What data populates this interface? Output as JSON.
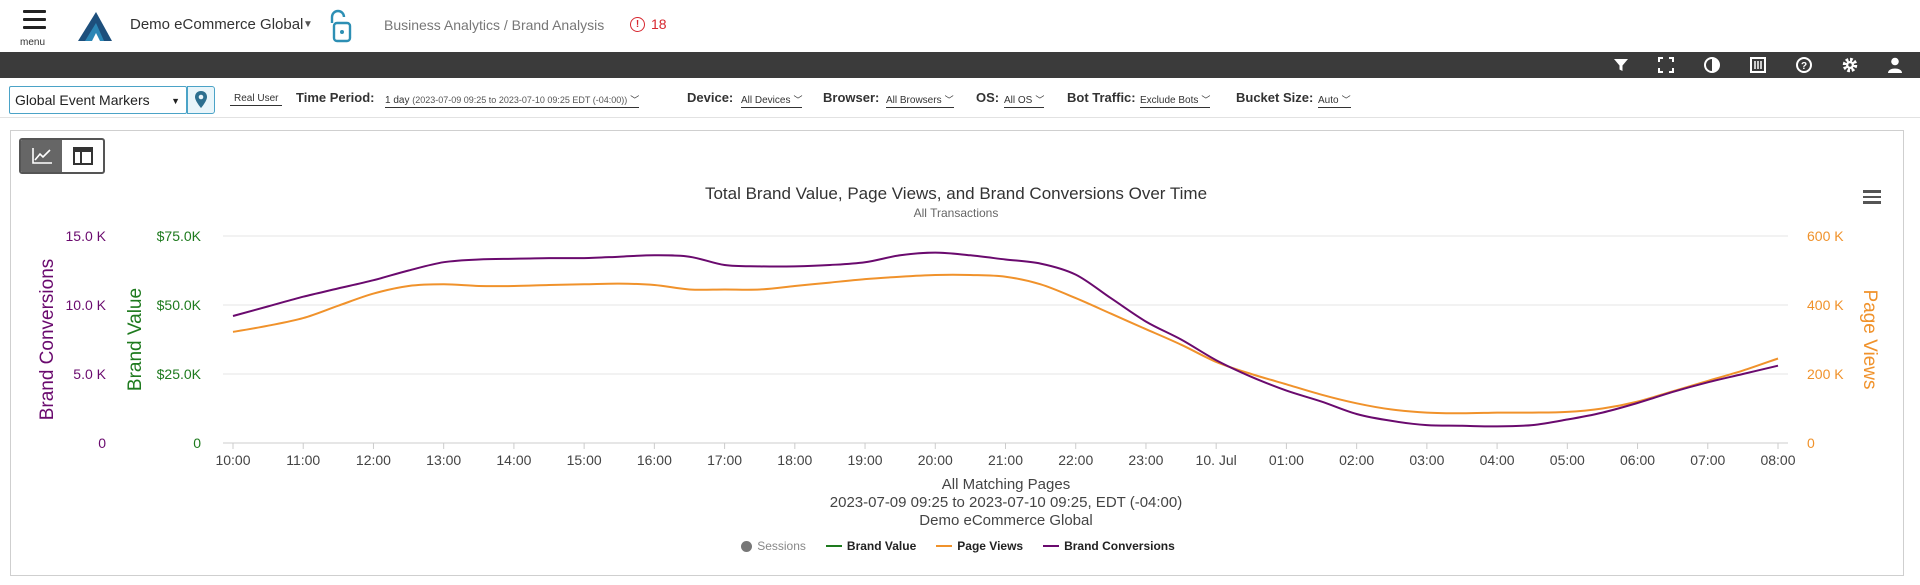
{
  "header": {
    "menu_label": "menu",
    "site_name": "Demo eCommerce Global",
    "breadcrumb": "Business Analytics / Brand Analysis",
    "alert_count": "18"
  },
  "toolbar": {
    "icons": [
      "filter-icon",
      "fullscreen-icon",
      "contrast-icon",
      "notes-icon",
      "help-icon",
      "settings-icon",
      "user-icon"
    ]
  },
  "filters": {
    "marker_select": "Global Event Markers",
    "real_user": "Real User",
    "time_period_label": "Time Period:",
    "time_period_value": "1 day",
    "time_period_range": "(2023-07-09 09:25 to 2023-07-10 09:25 EDT (-04:00))",
    "device_label": "Device:",
    "device_value": "All Devices",
    "browser_label": "Browser:",
    "browser_value": "All Browsers",
    "os_label": "OS:",
    "os_value": "All OS",
    "bot_label": "Bot Traffic:",
    "bot_value": "Exclude Bots",
    "bucket_label": "Bucket Size:",
    "bucket_value": "Auto"
  },
  "chart_data": {
    "type": "line",
    "title": "Total Brand Value, Page Views, and Brand Conversions Over Time",
    "subtitle": "All Transactions",
    "x_ticks": [
      "10:00",
      "11:00",
      "12:00",
      "13:00",
      "14:00",
      "15:00",
      "16:00",
      "17:00",
      "18:00",
      "19:00",
      "20:00",
      "21:00",
      "22:00",
      "23:00",
      "10. Jul",
      "01:00",
      "02:00",
      "03:00",
      "04:00",
      "05:00",
      "06:00",
      "07:00",
      "08:00"
    ],
    "x_hours": [
      0,
      0.5,
      1,
      1.5,
      2,
      2.5,
      3,
      3.5,
      4,
      4.5,
      5,
      5.5,
      6,
      6.5,
      7,
      7.5,
      8,
      8.5,
      9,
      9.5,
      10,
      10.5,
      11,
      11.5,
      12,
      12.5,
      13,
      13.5,
      14,
      14.5,
      15,
      15.5,
      16,
      16.5,
      17,
      17.5,
      18,
      18.5,
      19,
      19.5,
      20,
      20.5,
      21,
      21.5,
      22
    ],
    "axes": {
      "brand_conversions": {
        "label": "Brand Conversions",
        "ticks": [
          "0",
          "5.0 K",
          "10.0 K",
          "15.0 K"
        ],
        "range": [
          0,
          15000
        ],
        "color": "#6a0a6e"
      },
      "brand_value": {
        "label": "Brand Value",
        "ticks": [
          "0",
          "$25.0K",
          "$50.0K",
          "$75.0K"
        ],
        "range": [
          0,
          75000
        ],
        "color": "#1e7a1e"
      },
      "page_views": {
        "label": "Page Views",
        "ticks": [
          "0",
          "200 K",
          "400 K",
          "600 K"
        ],
        "range": [
          0,
          600000
        ],
        "color": "#f0922b"
      }
    },
    "series": [
      {
        "name": "Sessions",
        "color": "#777777",
        "visible": false,
        "values": []
      },
      {
        "name": "Brand Value",
        "color": "#1e7a1e",
        "visible": true,
        "values": []
      },
      {
        "name": "Page Views",
        "color": "#f0922b",
        "axis": "page_views",
        "values": [
          322000,
          340000,
          362000,
          398000,
          433000,
          455000,
          460000,
          455000,
          455000,
          458000,
          460000,
          462000,
          458000,
          445000,
          445000,
          445000,
          455000,
          465000,
          475000,
          482000,
          487000,
          487000,
          482000,
          460000,
          420000,
          375000,
          330000,
          285000,
          235000,
          200000,
          170000,
          140000,
          115000,
          97000,
          88000,
          86000,
          88000,
          88000,
          90000,
          100000,
          120000,
          150000,
          180000,
          210000,
          245000
        ]
      },
      {
        "name": "Brand Conversions",
        "color": "#6a0a6e",
        "axis": "brand_conversions",
        "values": [
          9200,
          9900,
          10600,
          11200,
          11800,
          12500,
          13100,
          13300,
          13350,
          13400,
          13400,
          13500,
          13600,
          13500,
          12900,
          12800,
          12800,
          12900,
          13100,
          13600,
          13800,
          13600,
          13300,
          13000,
          12200,
          10500,
          8800,
          7500,
          6000,
          4800,
          3800,
          3000,
          2100,
          1600,
          1300,
          1250,
          1200,
          1300,
          1700,
          2200,
          2900,
          3700,
          4400,
          5000,
          5600
        ]
      }
    ],
    "x_footer": [
      "All Matching Pages",
      "2023-07-09 09:25 to 2023-07-10 09:25, EDT (-04:00)",
      "Demo eCommerce Global"
    ],
    "legend_position": "bottom-center",
    "grid": true
  }
}
